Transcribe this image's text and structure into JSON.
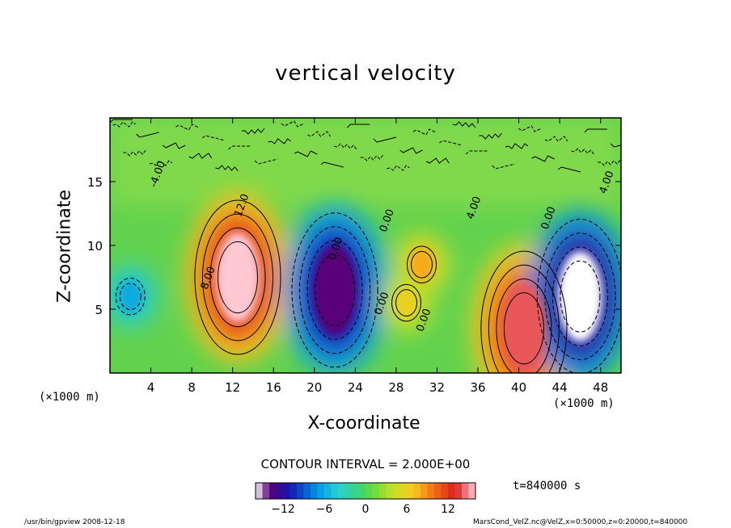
{
  "chart_data": {
    "type": "heatmap",
    "title": "vertical velocity",
    "xlabel": "X-coordinate",
    "ylabel": "Z-coordinate",
    "x_unit_left": "(×1000 m)",
    "x_unit_right": "(×1000 m)",
    "x_ticks": [
      4,
      8,
      12,
      16,
      20,
      24,
      28,
      32,
      36,
      40,
      44,
      48
    ],
    "y_ticks": [
      5,
      10,
      15
    ],
    "xlim": [
      0,
      50
    ],
    "ylim": [
      0,
      20
    ],
    "contour_interval": "CONTOUR INTERVAL = 2.000E+00",
    "time_label": "t=840000 s",
    "colorbar": {
      "ticks": [
        -12,
        -6,
        0,
        6,
        12
      ],
      "range": [
        -16,
        16
      ]
    },
    "contour_labels": [
      "8.00",
      "12.0",
      "0.00",
      "0.00",
      "4.00",
      "0.00",
      "0.00",
      "4.00",
      "-4.00",
      "0.00"
    ],
    "features": [
      {
        "x": 12.5,
        "z": 7.5,
        "value": 16,
        "label": "updraft"
      },
      {
        "x": 22.0,
        "z": 6.5,
        "value": -14,
        "label": "downdraft"
      },
      {
        "x": 40.5,
        "z": 3.5,
        "value": 14,
        "label": "updraft"
      },
      {
        "x": 46.0,
        "z": 6.0,
        "value": -16,
        "label": "downdraft"
      },
      {
        "x": 30.5,
        "z": 8.5,
        "value": 8,
        "label": "updraft"
      },
      {
        "x": 29.0,
        "z": 5.5,
        "value": 6,
        "label": "updraft"
      },
      {
        "x": 2.0,
        "z": 6.0,
        "value": -6,
        "label": "downdraft"
      }
    ]
  },
  "footer": {
    "left": "/usr/bin/gpview   2008-12-18",
    "right": "MarsCond_VelZ.nc@VelZ,x=0:50000,z=0:20000,t=840000"
  }
}
